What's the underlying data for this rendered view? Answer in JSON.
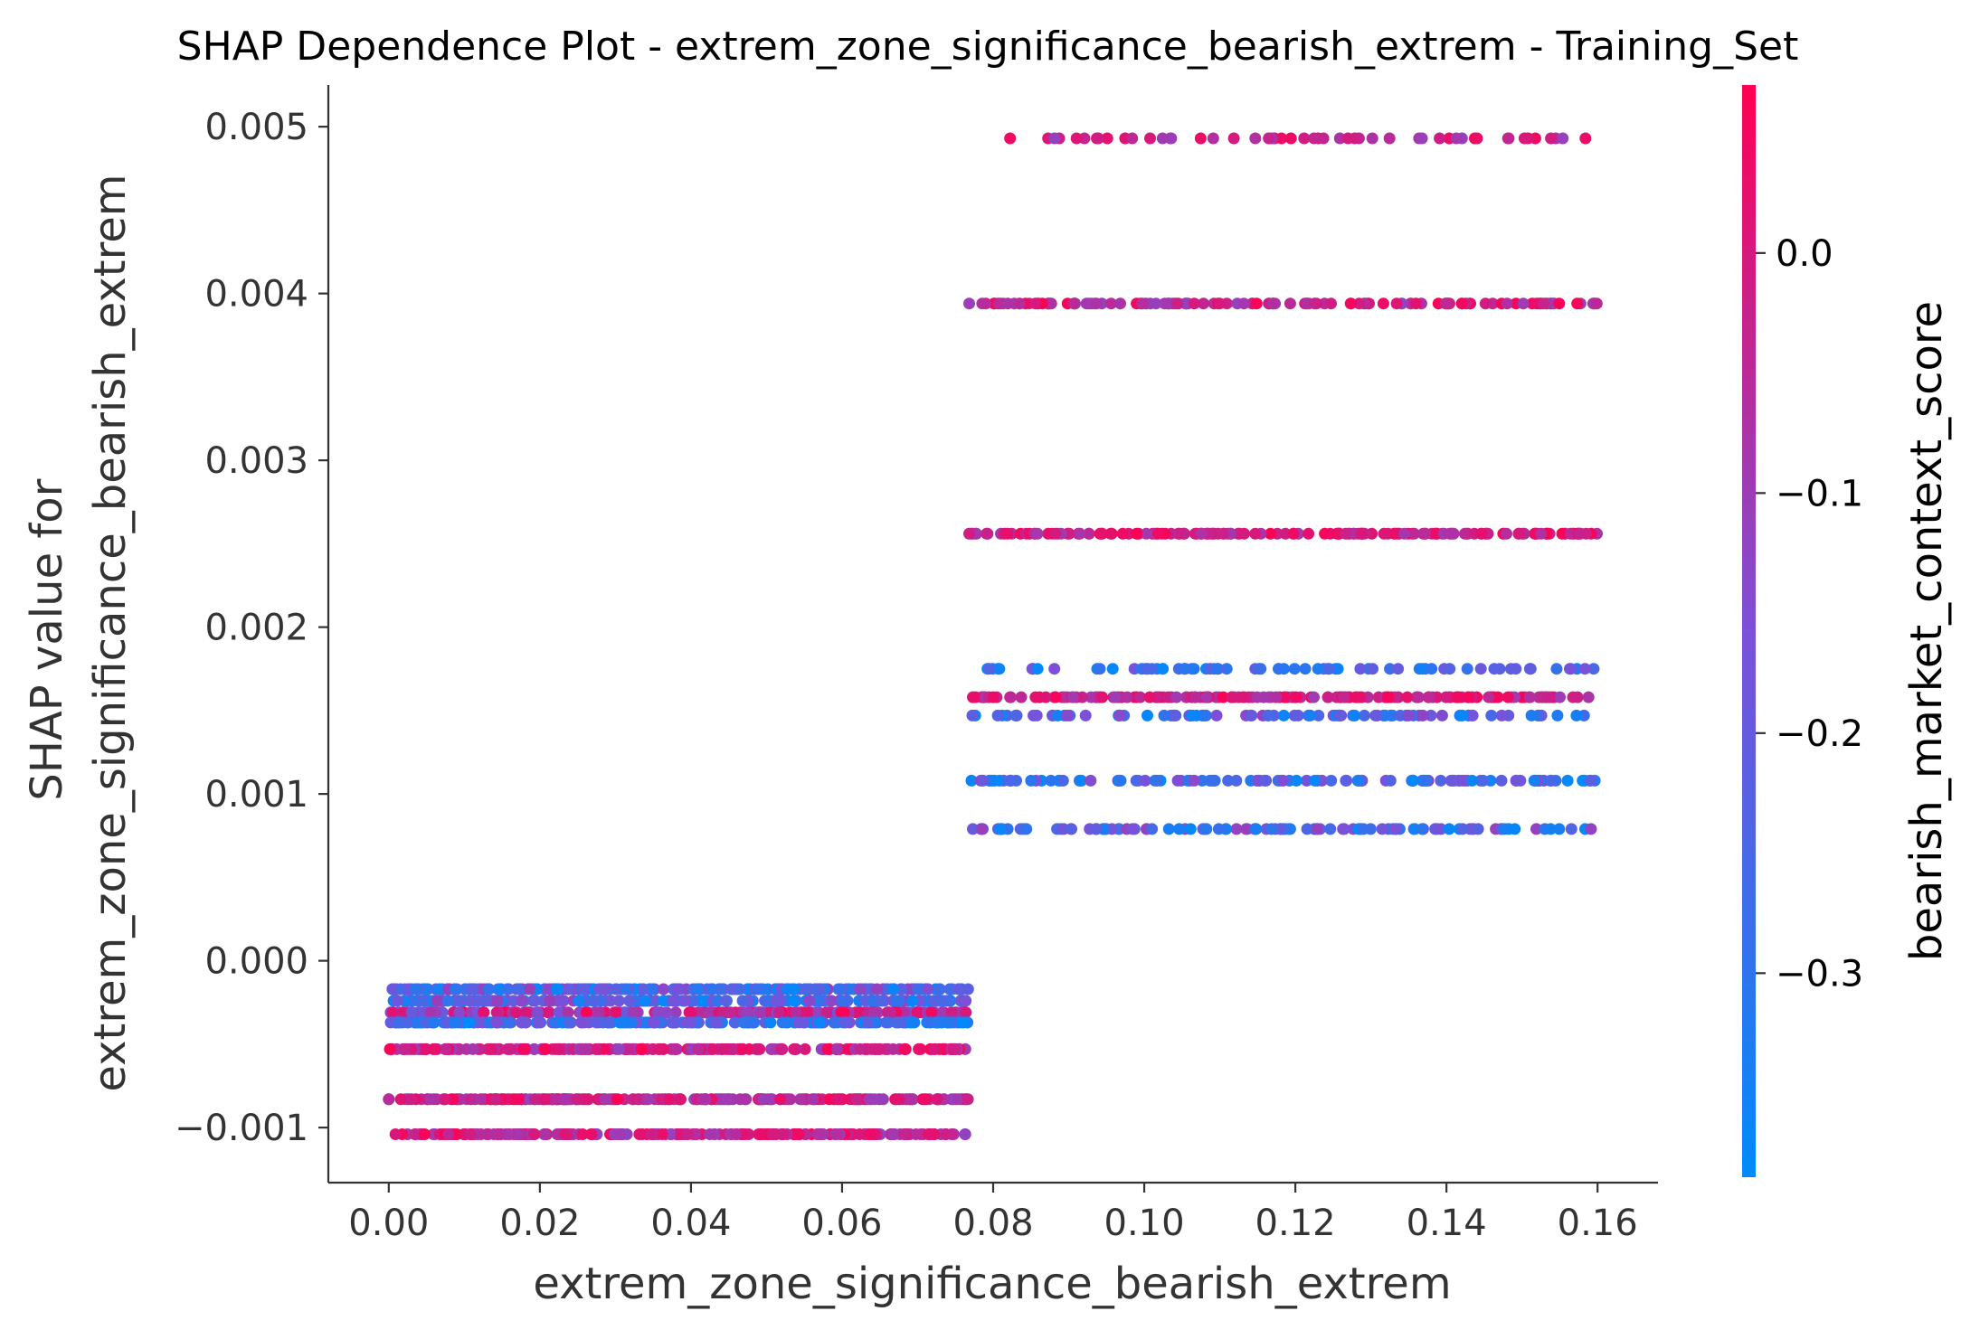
{
  "chart_data": {
    "type": "scatter",
    "title": "SHAP Dependence Plot - extrem_zone_significance_bearish_extrem - Training_Set",
    "xlabel": "extrem_zone_significance_bearish_extrem",
    "ylabel_line1": "SHAP value for",
    "ylabel_line2": "extrem_zone_significance_bearish_extrem",
    "xlim": [
      -0.008,
      0.168
    ],
    "ylim": [
      -0.00133,
      0.00525
    ],
    "x_ticks": [
      0.0,
      0.02,
      0.04,
      0.06,
      0.08,
      0.1,
      0.12,
      0.14,
      0.16
    ],
    "x_tick_labels": [
      "0.00",
      "0.02",
      "0.04",
      "0.06",
      "0.08",
      "0.10",
      "0.12",
      "0.14",
      "0.16"
    ],
    "y_ticks": [
      -0.001,
      0.0,
      0.001,
      0.002,
      0.003,
      0.004,
      0.005
    ],
    "y_tick_labels": [
      "−0.001",
      "0.000",
      "0.001",
      "0.002",
      "0.003",
      "0.004",
      "0.005"
    ],
    "colorbar": {
      "label": "bearish_market_context_score",
      "range": [
        -0.385,
        0.07
      ],
      "ticks": [
        0.0,
        -0.1,
        -0.2,
        -0.3
      ],
      "tick_labels": [
        "0.0",
        "−0.1",
        "−0.2",
        "−0.3"
      ],
      "color_low": "#008afb",
      "color_mid": "#7c50d8",
      "color_high": "#ff0052"
    },
    "bands": [
      {
        "y": 0.00493,
        "x_min": 0.0768,
        "x_max": 0.16,
        "count": 52,
        "color_min": -0.12,
        "color_max": 0.07
      },
      {
        "y": 0.00394,
        "x_min": 0.0768,
        "x_max": 0.16,
        "count": 130,
        "color_min": -0.12,
        "color_max": 0.07
      },
      {
        "y": 0.00256,
        "x_min": 0.0768,
        "x_max": 0.16,
        "count": 160,
        "color_min": -0.1,
        "color_max": 0.07
      },
      {
        "y": 0.00175,
        "x_min": 0.0768,
        "x_max": 0.16,
        "count": 70,
        "color_min": -0.385,
        "color_max": -0.15
      },
      {
        "y": 0.00158,
        "x_min": 0.0768,
        "x_max": 0.16,
        "count": 160,
        "color_min": -0.1,
        "color_max": 0.07
      },
      {
        "y": 0.00147,
        "x_min": 0.0768,
        "x_max": 0.16,
        "count": 90,
        "color_min": -0.385,
        "color_max": -0.12
      },
      {
        "y": 0.00108,
        "x_min": 0.0768,
        "x_max": 0.16,
        "count": 110,
        "color_min": -0.385,
        "color_max": -0.12
      },
      {
        "y": 0.00079,
        "x_min": 0.0768,
        "x_max": 0.16,
        "count": 110,
        "color_min": -0.385,
        "color_max": -0.1
      },
      {
        "y": -0.00017,
        "x_min": 0.0,
        "x_max": 0.0768,
        "count": 260,
        "color_min": -0.385,
        "color_max": -0.1
      },
      {
        "y": -0.00024,
        "x_min": 0.0,
        "x_max": 0.0768,
        "count": 200,
        "color_min": -0.385,
        "color_max": -0.1
      },
      {
        "y": -0.00031,
        "x_min": 0.0,
        "x_max": 0.0768,
        "count": 230,
        "color_min": -0.2,
        "color_max": 0.07
      },
      {
        "y": -0.00037,
        "x_min": 0.0,
        "x_max": 0.0768,
        "count": 220,
        "color_min": -0.385,
        "color_max": -0.15
      },
      {
        "y": -0.00053,
        "x_min": 0.0,
        "x_max": 0.0768,
        "count": 230,
        "color_min": -0.12,
        "color_max": 0.07
      },
      {
        "y": -0.00083,
        "x_min": 0.0,
        "x_max": 0.0768,
        "count": 230,
        "color_min": -0.12,
        "color_max": 0.07
      },
      {
        "y": -0.00104,
        "x_min": 0.0,
        "x_max": 0.0768,
        "count": 220,
        "color_min": -0.12,
        "color_max": 0.07
      }
    ]
  }
}
